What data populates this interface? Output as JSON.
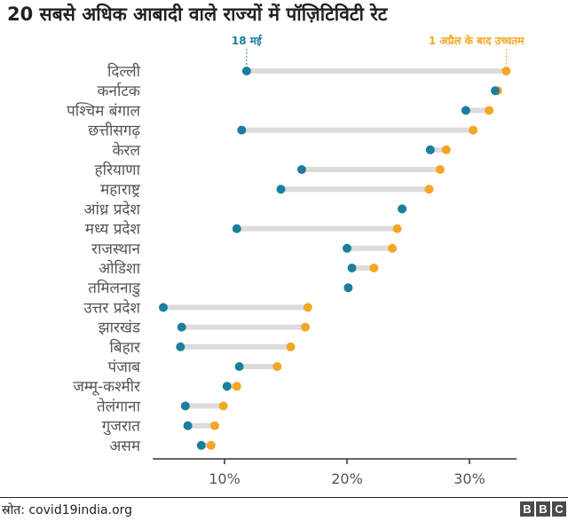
{
  "title": "20 सबसे अधिक आबादी वाले राज्यों में पॉज़िटिविटी रेट",
  "source": "स्रोत: covid19india.org",
  "brand": [
    "B",
    "B",
    "C"
  ],
  "colors": {
    "may18": "#1a7f9c",
    "peak": "#f5a623",
    "connector": "#dcdcdc",
    "axis": "#333333",
    "text": "#333333",
    "label": "#555555"
  },
  "chart_data": {
    "type": "dumbbell",
    "xlim": [
      4,
      34
    ],
    "xticks": [
      10,
      20,
      30
    ],
    "xtick_labels": [
      "10%",
      "20%",
      "30%"
    ],
    "grid": false,
    "categories": [
      "दिल्ली",
      "कर्नाटक",
      "पश्चिम बंगाल",
      "छत्तीसगढ़",
      "केरल",
      "हरियाणा",
      "महाराष्ट्र",
      "आंध्र प्रदेश",
      "मध्य प्रदेश",
      "राजस्थान",
      "ओडिशा",
      "तमिलनाडु",
      "उत्तर प्रदेश",
      "झारखंड",
      "बिहार",
      "पंजाब",
      "जम्मू-कश्मीर",
      "तेलंगाना",
      "गुजरात",
      "असम"
    ],
    "series": [
      {
        "name": "18 मई",
        "color": "#1a7f9c",
        "values": [
          11.8,
          32.1,
          29.7,
          11.4,
          26.8,
          16.3,
          14.6,
          24.5,
          11.0,
          20.0,
          20.4,
          20.1,
          5.0,
          6.5,
          6.4,
          11.2,
          10.2,
          6.8,
          7.0,
          8.1
        ]
      },
      {
        "name": "1 अप्रैल के बाद उच्चतम",
        "color": "#f5a623",
        "values": [
          33.0,
          32.3,
          31.6,
          30.3,
          28.1,
          27.6,
          26.7,
          24.5,
          24.1,
          23.7,
          22.2,
          20.1,
          16.8,
          16.6,
          15.4,
          14.3,
          11.0,
          9.9,
          9.2,
          8.9
        ]
      }
    ]
  }
}
